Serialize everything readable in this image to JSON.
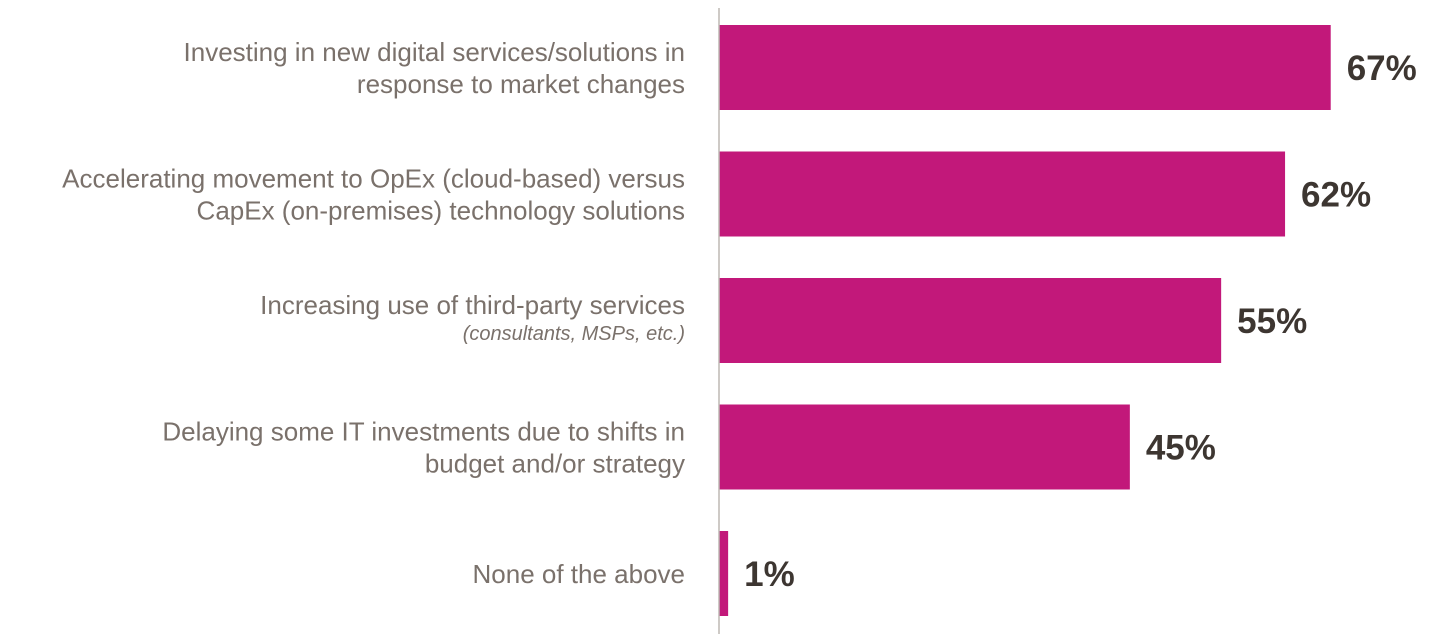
{
  "chart_data": {
    "type": "bar",
    "orientation": "horizontal",
    "categories": [
      {
        "label_lines": [
          "Investing in new digital services/solutions in",
          "response to market changes"
        ],
        "sublabel": ""
      },
      {
        "label_lines": [
          "Accelerating movement to OpEx (cloud-based) versus",
          "CapEx (on-premises) technology solutions"
        ],
        "sublabel": ""
      },
      {
        "label_lines": [
          "Increasing use of third-party services"
        ],
        "sublabel": "(consultants, MSPs, etc.)"
      },
      {
        "label_lines": [
          "Delaying some IT investments due to shifts in",
          "budget and/or strategy"
        ],
        "sublabel": ""
      },
      {
        "label_lines": [
          "None of the above"
        ],
        "sublabel": ""
      }
    ],
    "values": [
      67,
      62,
      55,
      45,
      1
    ],
    "value_labels": [
      "67%",
      "62%",
      "55%",
      "45%",
      "1%"
    ],
    "xlim": [
      0,
      100
    ],
    "grid": false,
    "legend": "none",
    "colors": {
      "bar": "#c2187a",
      "axis": "#bdb8b3",
      "category_text": "#7a716b",
      "value_text": "#3d3631"
    }
  }
}
